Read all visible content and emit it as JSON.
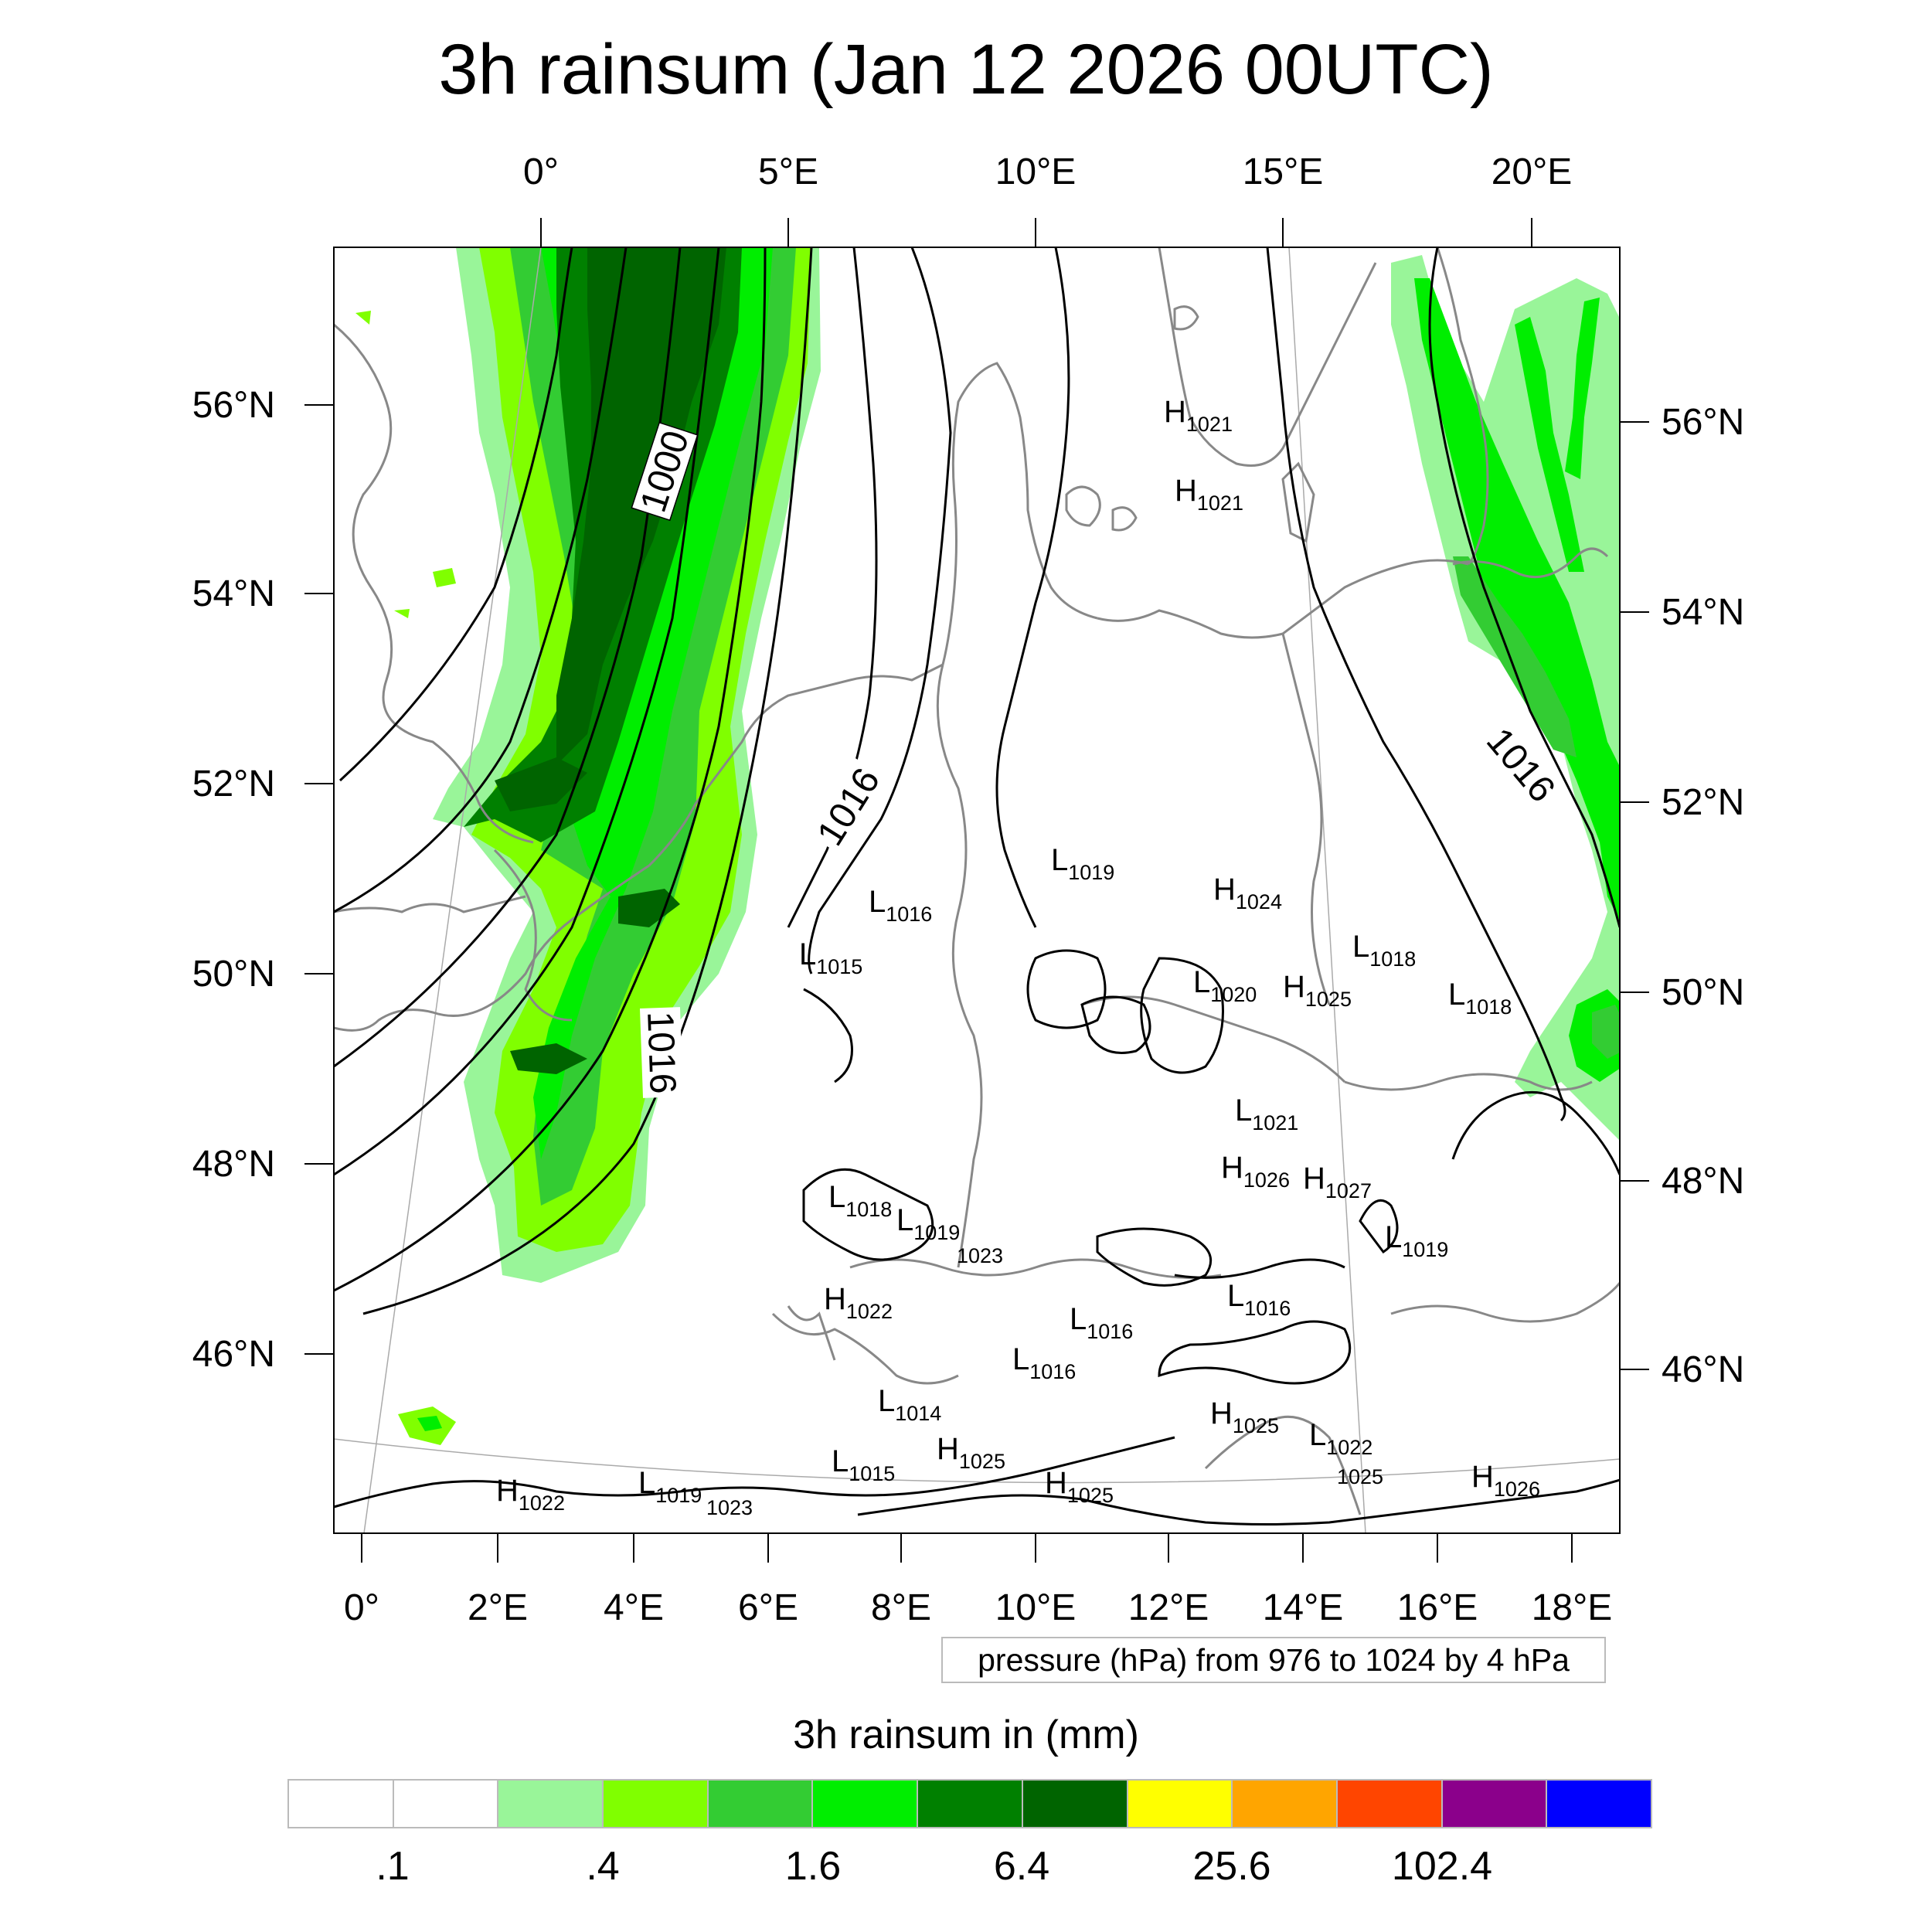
{
  "title": "3h rainsum (Jan 12 2026 00UTC)",
  "top_lon_labels": [
    "0°",
    "5°E",
    "10°E",
    "15°E",
    "20°E"
  ],
  "bottom_lon_labels": [
    "0°",
    "2°E",
    "4°E",
    "6°E",
    "8°E",
    "10°E",
    "12°E",
    "14°E",
    "16°E",
    "18°E"
  ],
  "left_lat_labels": [
    "56°N",
    "54°N",
    "52°N",
    "50°N",
    "48°N",
    "46°N"
  ],
  "right_lat_labels": [
    "56°N",
    "54°N",
    "52°N",
    "50°N",
    "48°N",
    "46°N"
  ],
  "contour_info": "pressure (hPa) from 976 to 1024 by 4 hPa",
  "contour_labels": [
    "1000",
    "1016",
    "1016",
    "1016"
  ],
  "pressure_centers": [
    {
      "type": "H",
      "value": "1021"
    },
    {
      "type": "H",
      "value": "1021"
    },
    {
      "type": "L",
      "value": "1019"
    },
    {
      "type": "H",
      "value": "1024"
    },
    {
      "type": "L",
      "value": "1016"
    },
    {
      "type": "L",
      "value": "1015"
    },
    {
      "type": "L",
      "value": "1018"
    },
    {
      "type": "L",
      "value": "1020"
    },
    {
      "type": "H",
      "value": "1025"
    },
    {
      "type": "L",
      "value": "1018"
    },
    {
      "type": "L",
      "value": "1021"
    },
    {
      "type": "H",
      "value": "1026"
    },
    {
      "type": "H",
      "value": "1027"
    },
    {
      "type": "L",
      "value": "1018"
    },
    {
      "type": "L",
      "value": "1019"
    },
    {
      "type": "",
      "value": "1023"
    },
    {
      "type": "L",
      "value": "1019"
    },
    {
      "type": "H",
      "value": "1022"
    },
    {
      "type": "L",
      "value": "1016"
    },
    {
      "type": "L",
      "value": "1016"
    },
    {
      "type": "L",
      "value": "1016"
    },
    {
      "type": "L",
      "value": "1014"
    },
    {
      "type": "H",
      "value": "1025"
    },
    {
      "type": "L",
      "value": "1022"
    },
    {
      "type": "",
      "value": "1025"
    },
    {
      "type": "L",
      "value": "1015"
    },
    {
      "type": "H",
      "value": "1025"
    },
    {
      "type": "H",
      "value": "1025"
    },
    {
      "type": "H",
      "value": "1026"
    },
    {
      "type": "H",
      "value": "1022"
    },
    {
      "type": "L",
      "value": "1019"
    },
    {
      "type": "",
      "value": "1023"
    }
  ],
  "colorbar": {
    "title": "3h rainsum in (mm)",
    "colors": [
      "#ffffff",
      "#ffffff",
      "#99f599",
      "#80ff00",
      "#33cc33",
      "#00ee00",
      "#008000",
      "#006400",
      "#ffff00",
      "#ffa500",
      "#ff4500",
      "#8b008b",
      "#0000ff"
    ],
    "labels": [
      ".1",
      ".4",
      "1.6",
      "6.4",
      "25.6",
      "102.4"
    ]
  },
  "colors": {
    "coastline": "#888888",
    "contour": "#000000",
    "graticule": "#aaaaaa",
    "rain_light": "#99f599",
    "rain_yellowgreen": "#80ff00",
    "rain_mid": "#33cc33",
    "rain_bright": "#00ee00",
    "rain_dark": "#008000",
    "rain_darkest": "#006400"
  }
}
